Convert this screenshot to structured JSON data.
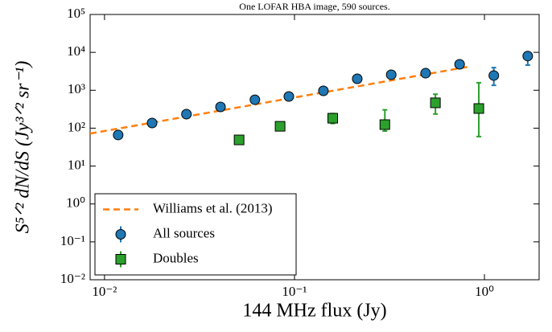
{
  "chart_data": {
    "type": "scatter",
    "title": "One LOFAR HBA image, 590 sources.",
    "xlabel": "144 MHz flux (Jy)",
    "ylabel": "S⁵ᐟ² dN/dS (Jy³ᐟ² sr⁻¹)",
    "log_x": true,
    "log_y": true,
    "legend_loc": "lower left",
    "xlim": [
      0.0084,
      1.94
    ],
    "ylim": [
      0.01,
      100000
    ],
    "xticks": [
      {
        "value": 0.01,
        "label": "10⁻²"
      },
      {
        "value": 0.1,
        "label": "10⁻¹"
      },
      {
        "value": 1,
        "label": "10⁰"
      }
    ],
    "yticks": [
      {
        "value": 0.01,
        "label": "10⁻²"
      },
      {
        "value": 0.1,
        "label": "10⁻¹"
      },
      {
        "value": 1,
        "label": "10⁰"
      },
      {
        "value": 10,
        "label": "10¹"
      },
      {
        "value": 100,
        "label": "10²"
      },
      {
        "value": 1000,
        "label": "10³"
      },
      {
        "value": 10000,
        "label": "10⁴"
      },
      {
        "value": 100000,
        "label": "10⁵"
      }
    ],
    "series": [
      {
        "name": "Williams et al. (2013)",
        "color": "#ff7f0e",
        "marker": "none",
        "linestyle": "dashed",
        "x": [
          0.0084,
          0.83
        ],
        "values": [
          72,
          4200
        ]
      },
      {
        "name": "All sources",
        "color": "#1f77b4",
        "marker": "circle",
        "x": [
          0.0118,
          0.0178,
          0.027,
          0.0408,
          0.0619,
          0.0934,
          0.142,
          0.214,
          0.323,
          0.49,
          0.74,
          1.12,
          1.69
        ],
        "values": [
          66,
          137,
          234,
          363,
          562,
          686,
          966,
          2010,
          2570,
          2820,
          4840,
          2450,
          8000
        ],
        "err_minus": [
          10,
          15,
          20,
          30,
          50,
          60,
          90,
          200,
          300,
          400,
          600,
          1100,
          3400
        ],
        "err_plus": [
          12,
          18,
          25,
          35,
          60,
          70,
          110,
          250,
          350,
          500,
          800,
          1500,
          1900
        ]
      },
      {
        "name": "Doubles",
        "color": "#2ca02c",
        "marker": "square",
        "x": [
          0.0511,
          0.084,
          0.159,
          0.299,
          0.552,
          0.934
        ],
        "values": [
          49,
          112,
          183,
          124,
          466,
          330
        ],
        "err_minus": [
          10,
          20,
          50,
          40,
          230,
          270
        ],
        "err_plus": [
          12,
          25,
          60,
          180,
          320,
          1250
        ]
      }
    ]
  }
}
